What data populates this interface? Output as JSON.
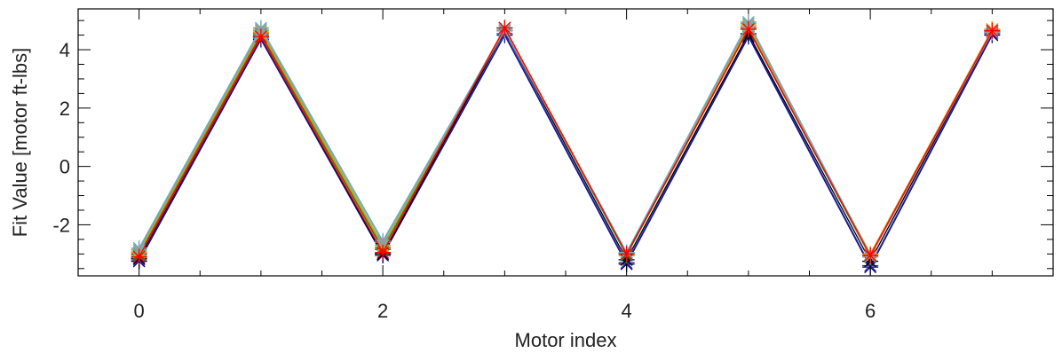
{
  "chart_data": {
    "type": "line",
    "title": "",
    "xlabel": "Motor index",
    "ylabel": "Fit Value [motor ft-lbs]",
    "xlim": [
      -0.5,
      7.5
    ],
    "ylim": [
      -3.75,
      5.4
    ],
    "xticks": [
      0,
      2,
      4,
      6
    ],
    "yticks": [
      -2,
      0,
      2,
      4
    ],
    "x_minor_step": 0.5,
    "y_minor_step": 0.5,
    "grid": false,
    "legend": "none",
    "marker": "asterisk",
    "x": [
      0,
      1,
      2,
      3,
      4,
      5,
      6,
      7
    ],
    "series": [
      {
        "color": "#000080",
        "values": [
          -3.25,
          4.35,
          -3.05,
          4.5,
          -3.35,
          4.45,
          -3.45,
          4.5
        ]
      },
      {
        "color": "#2a2aa8",
        "values": [
          -3.2,
          4.4,
          -3.0,
          4.55,
          -3.3,
          4.5,
          -3.4,
          4.55
        ]
      },
      {
        "color": "#000000",
        "values": [
          -3.15,
          4.45,
          -3.0,
          4.65,
          -3.2,
          4.55,
          -3.25,
          4.6
        ]
      },
      {
        "color": "#1a8a1a",
        "values": [
          -3.05,
          4.5,
          -2.85,
          4.7,
          -3.05,
          4.7,
          -3.1,
          4.65
        ]
      },
      {
        "color": "#8b4513",
        "values": [
          -3.0,
          4.55,
          -2.8,
          4.75,
          -3.0,
          4.75,
          -3.05,
          4.7
        ]
      },
      {
        "color": "#e69500",
        "values": [
          -2.95,
          4.6,
          -2.75,
          4.75,
          -2.95,
          4.8,
          -3.0,
          4.7
        ]
      },
      {
        "color": "#7fbf3f",
        "values": [
          -2.9,
          4.65,
          -2.7,
          4.7,
          -2.95,
          4.85,
          -3.05,
          4.65
        ]
      },
      {
        "color": "#5ab4d6",
        "values": [
          -2.8,
          4.75,
          -2.55,
          4.7,
          -2.95,
          4.95,
          -3.05,
          4.65
        ]
      },
      {
        "color": "#9a9a9a",
        "values": [
          -2.85,
          4.7,
          -2.6,
          4.65,
          -3.0,
          4.9,
          -3.1,
          4.6
        ]
      },
      {
        "color": "#ff0000",
        "values": [
          -3.1,
          4.45,
          -2.95,
          4.75,
          -3.0,
          4.7,
          -3.05,
          4.65
        ]
      }
    ]
  }
}
